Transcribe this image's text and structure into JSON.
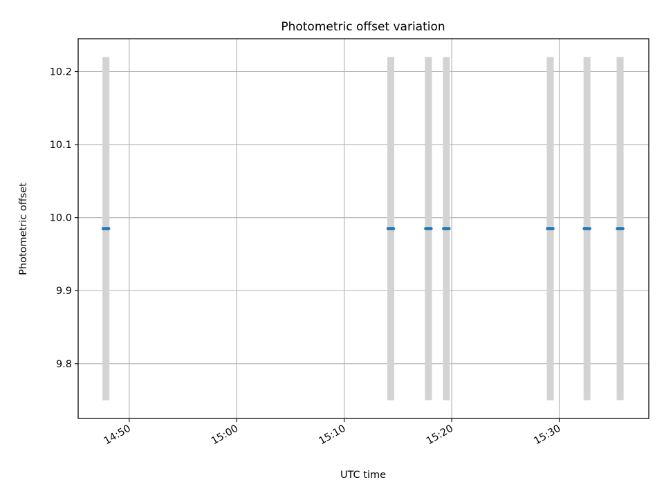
{
  "chart_data": {
    "type": "scatter",
    "title": "Photometric offset variation",
    "xlabel": "UTC time",
    "ylabel": "Photometric offset",
    "grid": true,
    "legend": "none",
    "x_ticks": [
      "14:50",
      "15:00",
      "15:10",
      "15:20",
      "15:30"
    ],
    "y_ticks": [
      "9.8",
      "9.9",
      "10.0",
      "10.1",
      "10.2"
    ],
    "xlim": [
      "14:45:15",
      "15:38:20"
    ],
    "ylim": [
      9.725,
      10.245
    ],
    "series": [
      {
        "values": [
          {
            "x": "14:47:50",
            "y": 9.985,
            "err": [
              9.75,
              10.22
            ]
          },
          {
            "x": "15:14:20",
            "y": 9.985,
            "err": [
              9.75,
              10.22
            ]
          },
          {
            "x": "15:17:50",
            "y": 9.985,
            "err": [
              9.75,
              10.22
            ]
          },
          {
            "x": "15:19:30",
            "y": 9.985,
            "err": [
              9.75,
              10.22
            ]
          },
          {
            "x": "15:29:10",
            "y": 9.985,
            "err": [
              9.75,
              10.22
            ]
          },
          {
            "x": "15:32:35",
            "y": 9.985,
            "err": [
              9.75,
              10.22
            ]
          },
          {
            "x": "15:35:40",
            "y": 9.985,
            "err": [
              9.75,
              10.22
            ]
          }
        ]
      }
    ],
    "colors": {
      "marker": "#1f77b4",
      "errorbar": "#d3d3d3",
      "grid": "#b0b0b0",
      "axes": "#000000"
    }
  }
}
